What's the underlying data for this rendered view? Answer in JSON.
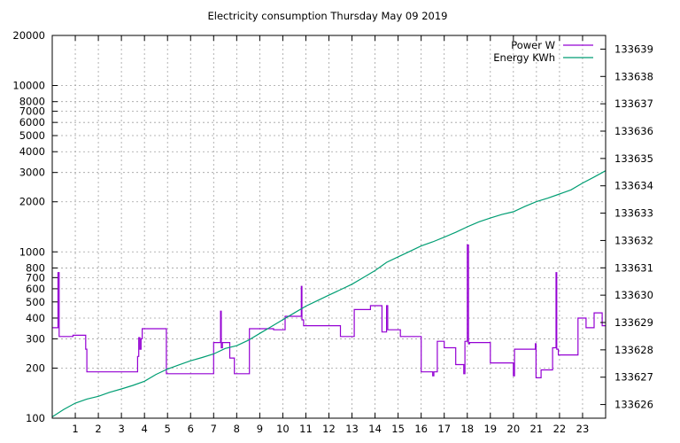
{
  "chart_data": {
    "type": "line",
    "title": "Electricity consumption Thursday May 09 2019",
    "xlabel": "",
    "ylabel": "",
    "y2label": "",
    "grid": true,
    "legend_position": "top-right",
    "x_range": [
      0,
      24
    ],
    "x_ticks": [
      "1",
      "2",
      "3",
      "4",
      "5",
      "6",
      "7",
      "8",
      "9",
      "10",
      "11",
      "12",
      "13",
      "14",
      "15",
      "16",
      "17",
      "18",
      "19",
      "20",
      "21",
      "22",
      "23"
    ],
    "y_scale": "log",
    "y_range": [
      100,
      20000
    ],
    "y_ticks": [
      {
        "value": 100,
        "label": "100"
      },
      {
        "value": 200,
        "label": "200"
      },
      {
        "value": 300,
        "label": "300"
      },
      {
        "value": 400,
        "label": "400"
      },
      {
        "value": 500,
        "label": "500"
      },
      {
        "value": 600,
        "label": "600"
      },
      {
        "value": 700,
        "label": "700"
      },
      {
        "value": 800,
        "label": "800"
      },
      {
        "value": 1000,
        "label": "1000"
      },
      {
        "value": 2000,
        "label": "2000"
      },
      {
        "value": 3000,
        "label": "3000"
      },
      {
        "value": 4000,
        "label": "4000"
      },
      {
        "value": 5000,
        "label": "5000"
      },
      {
        "value": 6000,
        "label": "6000"
      },
      {
        "value": 7000,
        "label": "7000"
      },
      {
        "value": 8000,
        "label": "8000"
      },
      {
        "value": 10000,
        "label": "10000"
      },
      {
        "value": 20000,
        "label": "20000"
      }
    ],
    "y2_range": [
      133625.5,
      133639.5
    ],
    "y2_ticks": [
      "133626",
      "133627",
      "133628",
      "133629",
      "133630",
      "133631",
      "133632",
      "133633",
      "133634",
      "133635",
      "133636",
      "133637",
      "133638",
      "133639"
    ],
    "series": [
      {
        "name": "Power W",
        "color": "#9400d3",
        "axis": "y1",
        "points": [
          [
            0.0,
            350
          ],
          [
            0.25,
            350
          ],
          [
            0.25,
            750
          ],
          [
            0.3,
            750
          ],
          [
            0.3,
            310
          ],
          [
            0.9,
            310
          ],
          [
            0.9,
            315
          ],
          [
            1.45,
            315
          ],
          [
            1.45,
            260
          ],
          [
            1.5,
            260
          ],
          [
            1.5,
            190
          ],
          [
            3.7,
            190
          ],
          [
            3.7,
            235
          ],
          [
            3.75,
            235
          ],
          [
            3.75,
            305
          ],
          [
            3.8,
            305
          ],
          [
            3.8,
            260
          ],
          [
            3.85,
            260
          ],
          [
            3.85,
            300
          ],
          [
            3.9,
            300
          ],
          [
            3.9,
            345
          ],
          [
            4.95,
            345
          ],
          [
            4.95,
            185
          ],
          [
            7.0,
            185
          ],
          [
            7.0,
            285
          ],
          [
            7.3,
            285
          ],
          [
            7.3,
            440
          ],
          [
            7.33,
            440
          ],
          [
            7.33,
            265
          ],
          [
            7.38,
            265
          ],
          [
            7.38,
            285
          ],
          [
            7.7,
            285
          ],
          [
            7.7,
            230
          ],
          [
            7.9,
            230
          ],
          [
            7.9,
            185
          ],
          [
            8.55,
            185
          ],
          [
            8.55,
            345
          ],
          [
            9.6,
            345
          ],
          [
            9.6,
            340
          ],
          [
            10.1,
            340
          ],
          [
            10.1,
            410
          ],
          [
            10.8,
            410
          ],
          [
            10.8,
            620
          ],
          [
            10.83,
            620
          ],
          [
            10.83,
            390
          ],
          [
            10.9,
            390
          ],
          [
            10.9,
            360
          ],
          [
            12.5,
            360
          ],
          [
            12.5,
            310
          ],
          [
            13.1,
            310
          ],
          [
            13.1,
            450
          ],
          [
            13.8,
            450
          ],
          [
            13.8,
            475
          ],
          [
            14.3,
            475
          ],
          [
            14.3,
            330
          ],
          [
            14.5,
            330
          ],
          [
            14.5,
            475
          ],
          [
            14.55,
            475
          ],
          [
            14.55,
            340
          ],
          [
            15.1,
            340
          ],
          [
            15.1,
            310
          ],
          [
            16.0,
            310
          ],
          [
            16.0,
            190
          ],
          [
            16.5,
            190
          ],
          [
            16.5,
            180
          ],
          [
            16.55,
            180
          ],
          [
            16.55,
            190
          ],
          [
            16.7,
            190
          ],
          [
            16.7,
            290
          ],
          [
            17.0,
            290
          ],
          [
            17.0,
            265
          ],
          [
            17.5,
            265
          ],
          [
            17.5,
            210
          ],
          [
            17.85,
            210
          ],
          [
            17.85,
            185
          ],
          [
            17.9,
            185
          ],
          [
            17.9,
            290
          ],
          [
            18.0,
            290
          ],
          [
            18.0,
            1100
          ],
          [
            18.05,
            1100
          ],
          [
            18.05,
            290
          ],
          [
            18.05,
            280
          ],
          [
            18.1,
            280
          ],
          [
            18.1,
            285
          ],
          [
            19.0,
            285
          ],
          [
            19.0,
            215
          ],
          [
            20.0,
            215
          ],
          [
            20.0,
            180
          ],
          [
            20.05,
            180
          ],
          [
            20.05,
            260
          ],
          [
            20.95,
            260
          ],
          [
            20.95,
            280
          ],
          [
            20.98,
            280
          ],
          [
            20.98,
            175
          ],
          [
            21.2,
            175
          ],
          [
            21.2,
            195
          ],
          [
            21.7,
            195
          ],
          [
            21.7,
            265
          ],
          [
            21.85,
            265
          ],
          [
            21.85,
            750
          ],
          [
            21.88,
            750
          ],
          [
            21.88,
            260
          ],
          [
            21.95,
            260
          ],
          [
            21.95,
            240
          ],
          [
            22.8,
            240
          ],
          [
            22.8,
            400
          ],
          [
            23.15,
            400
          ],
          [
            23.15,
            350
          ],
          [
            23.5,
            350
          ],
          [
            23.5,
            430
          ],
          [
            23.85,
            430
          ],
          [
            23.85,
            360
          ],
          [
            24.0,
            360
          ]
        ]
      },
      {
        "name": "Energy KWh",
        "color": "#009e73",
        "axis": "y2",
        "points": [
          [
            0.0,
            133625.55
          ],
          [
            0.5,
            133625.82
          ],
          [
            1.0,
            133626.05
          ],
          [
            1.5,
            133626.2
          ],
          [
            2.0,
            133626.3
          ],
          [
            2.5,
            133626.45
          ],
          [
            3.0,
            133626.57
          ],
          [
            3.5,
            133626.7
          ],
          [
            4.0,
            133626.85
          ],
          [
            4.5,
            133627.1
          ],
          [
            5.0,
            133627.3
          ],
          [
            5.5,
            133627.45
          ],
          [
            6.0,
            133627.6
          ],
          [
            6.5,
            133627.72
          ],
          [
            7.0,
            133627.85
          ],
          [
            7.5,
            133628.05
          ],
          [
            8.0,
            133628.15
          ],
          [
            8.5,
            133628.35
          ],
          [
            9.0,
            133628.6
          ],
          [
            9.5,
            133628.85
          ],
          [
            10.0,
            133629.1
          ],
          [
            10.5,
            133629.35
          ],
          [
            11.0,
            133629.6
          ],
          [
            11.5,
            133629.8
          ],
          [
            12.0,
            133630.0
          ],
          [
            12.5,
            133630.2
          ],
          [
            13.0,
            133630.4
          ],
          [
            13.5,
            133630.65
          ],
          [
            14.0,
            133630.9
          ],
          [
            14.5,
            133631.2
          ],
          [
            15.0,
            133631.4
          ],
          [
            15.5,
            133631.6
          ],
          [
            16.0,
            133631.8
          ],
          [
            16.5,
            133631.95
          ],
          [
            17.0,
            133632.12
          ],
          [
            17.5,
            133632.3
          ],
          [
            18.0,
            133632.5
          ],
          [
            18.5,
            133632.68
          ],
          [
            19.0,
            133632.82
          ],
          [
            19.5,
            133632.95
          ],
          [
            20.0,
            133633.05
          ],
          [
            20.5,
            133633.25
          ],
          [
            21.0,
            133633.42
          ],
          [
            21.5,
            133633.55
          ],
          [
            22.0,
            133633.7
          ],
          [
            22.5,
            133633.85
          ],
          [
            23.0,
            133634.1
          ],
          [
            23.5,
            133634.32
          ],
          [
            24.0,
            133634.55
          ]
        ]
      }
    ]
  }
}
